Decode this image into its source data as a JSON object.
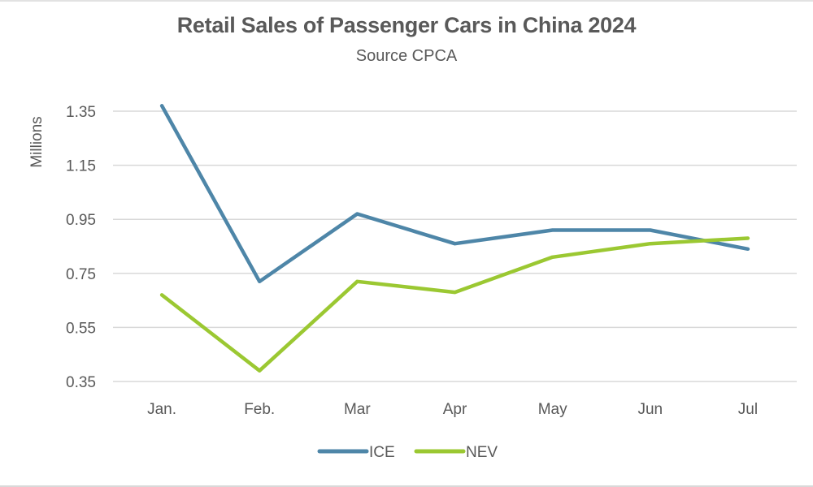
{
  "chart_data": {
    "type": "line",
    "title": "Retail Sales of Passenger Cars in China 2024",
    "subtitle": "Source CPCA",
    "xlabel": "",
    "ylabel": "Millions",
    "categories": [
      "Jan.",
      "Feb.",
      "Mar",
      "Apr",
      "May",
      "Jun",
      "Jul"
    ],
    "yticks": [
      "1.35",
      "1.15",
      "0.95",
      "0.75",
      "0.55",
      "0.35"
    ],
    "ylim": [
      0.35,
      1.35
    ],
    "grid": true,
    "legend_position": "bottom",
    "series": [
      {
        "name": "ICE",
        "color": "#4e86a8",
        "values": [
          1.37,
          0.72,
          0.97,
          0.86,
          0.91,
          0.91,
          0.84
        ]
      },
      {
        "name": "NEV",
        "color": "#9bc832",
        "values": [
          0.67,
          0.39,
          0.72,
          0.68,
          0.81,
          0.86,
          0.88
        ]
      }
    ]
  }
}
